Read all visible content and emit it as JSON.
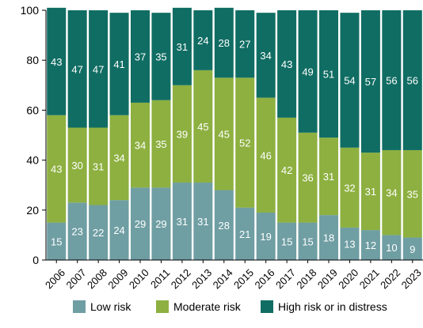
{
  "chart_data": {
    "type": "bar",
    "stacked": true,
    "categories": [
      "2006",
      "2007",
      "2008",
      "2009",
      "2010",
      "2011",
      "2012",
      "2013",
      "2014",
      "2015",
      "2016",
      "2017",
      "2018",
      "2019",
      "2020",
      "2021",
      "2022",
      "2023"
    ],
    "series": [
      {
        "name": "Low risk",
        "color": "#6f9ea3",
        "values": [
          15,
          23,
          22,
          24,
          29,
          29,
          31,
          31,
          28,
          21,
          19,
          15,
          15,
          18,
          13,
          12,
          10,
          9
        ]
      },
      {
        "name": "Moderate risk",
        "color": "#8db040",
        "values": [
          43,
          30,
          31,
          34,
          34,
          35,
          39,
          45,
          45,
          52,
          46,
          42,
          36,
          31,
          32,
          31,
          34,
          35
        ]
      },
      {
        "name": "High risk or in distress",
        "color": "#106d63",
        "values": [
          43,
          47,
          47,
          41,
          37,
          35,
          31,
          24,
          28,
          27,
          34,
          43,
          49,
          51,
          54,
          57,
          56,
          56
        ]
      }
    ],
    "ylim": [
      0,
      100
    ],
    "yticks": [
      0,
      20,
      40,
      60,
      80,
      100
    ],
    "grid": false,
    "legend_position": "bottom"
  }
}
